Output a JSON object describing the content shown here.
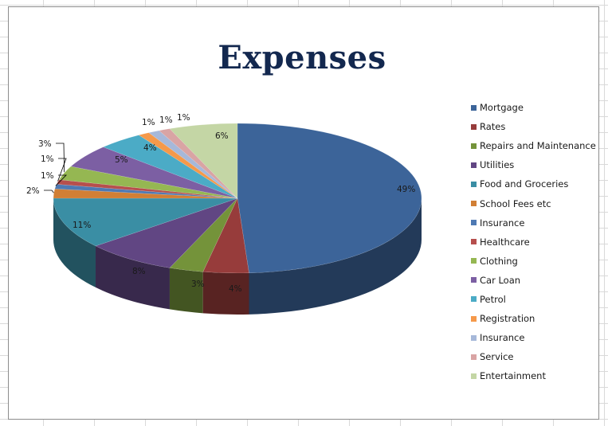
{
  "chart_data": {
    "type": "pie",
    "title": "Expenses",
    "legend_position": "right",
    "three_d": true,
    "slices": [
      {
        "label": "Mortgage",
        "value": 49,
        "value_label": "49%",
        "color": "#3c6499"
      },
      {
        "label": "Rates",
        "value": 4,
        "value_label": "4%",
        "color": "#973c3b"
      },
      {
        "label": "Repairs and  Maintenance",
        "value": 3,
        "value_label": "3%",
        "color": "#74933a"
      },
      {
        "label": "Utilities",
        "value": 8,
        "value_label": "8%",
        "color": "#614683"
      },
      {
        "label": "Food and Groceries",
        "value": 11,
        "value_label": "11%",
        "color": "#3a8ea4"
      },
      {
        "label": "School Fees etc",
        "value": 2,
        "value_label": "2%",
        "color": "#d17f35"
      },
      {
        "label": "Insurance",
        "value": 1,
        "value_label": "1%",
        "color": "#4e79b3"
      },
      {
        "label": "Healthcare",
        "value": 1,
        "value_label": "1%",
        "color": "#b64f4d"
      },
      {
        "label": "Clothing",
        "value": 3,
        "value_label": "3%",
        "color": "#95b752"
      },
      {
        "label": "Car Loan",
        "value": 5,
        "value_label": "5%",
        "color": "#7c5fa3"
      },
      {
        "label": "Petrol",
        "value": 4,
        "value_label": "4%",
        "color": "#4babc6"
      },
      {
        "label": "Registration",
        "value": 1,
        "value_label": "1%",
        "color": "#f5994a"
      },
      {
        "label": "Insurance",
        "value": 1,
        "value_label": "1%",
        "color": "#a6b8d9"
      },
      {
        "label": "Service",
        "value": 1,
        "value_label": "1%",
        "color": "#d9a4a4"
      },
      {
        "label": "Entertainment",
        "value": 6,
        "value_label": "6%",
        "color": "#c4d6a5"
      }
    ]
  }
}
